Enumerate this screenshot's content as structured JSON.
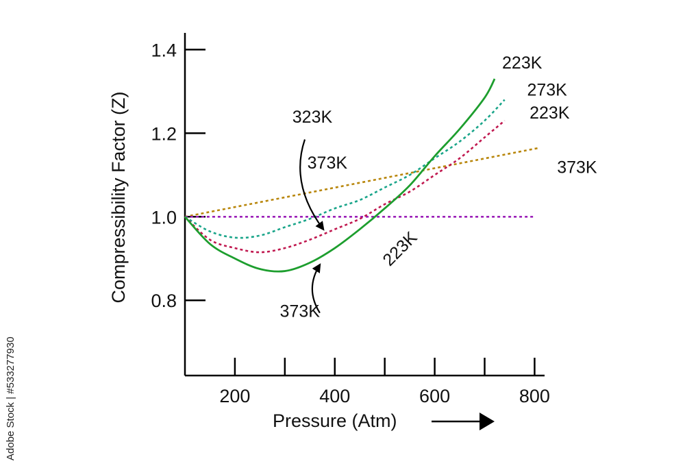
{
  "watermark": "Adobe Stock | #533277930",
  "chart_data": {
    "type": "line",
    "xlabel": "Pressure (Atm)",
    "ylabel": "Compressibility Factor (Z)",
    "xlim": [
      100,
      820
    ],
    "ylim": [
      0.62,
      1.44
    ],
    "xticks": [
      200,
      400,
      600,
      800
    ],
    "xticks_minor": [
      200,
      300,
      400,
      500,
      600,
      700,
      800
    ],
    "yticks": [
      0.8,
      1.0,
      1.2,
      1.4
    ],
    "x_arrow": true,
    "grid": false,
    "legend": "none",
    "series": [
      {
        "color": "#b8860b",
        "dash": true,
        "points": [
          [
            100,
            1.0
          ],
          [
            810,
            1.165
          ]
        ]
      },
      {
        "color": "#9b1fb8",
        "dash": true,
        "points": [
          [
            100,
            1.0
          ],
          [
            800,
            1.0
          ]
        ]
      },
      {
        "color": "#1aa58a",
        "dash": true,
        "points": [
          [
            100,
            1.0
          ],
          [
            150,
            0.965
          ],
          [
            200,
            0.95
          ],
          [
            250,
            0.955
          ],
          [
            300,
            0.975
          ],
          [
            350,
            0.995
          ],
          [
            400,
            1.02
          ],
          [
            450,
            1.04
          ],
          [
            500,
            1.07
          ],
          [
            550,
            1.1
          ],
          [
            600,
            1.14
          ],
          [
            650,
            1.18
          ],
          [
            700,
            1.23
          ],
          [
            740,
            1.28
          ]
        ]
      },
      {
        "color": "#c0184f",
        "dash": true,
        "points": [
          [
            100,
            1.0
          ],
          [
            150,
            0.945
          ],
          [
            200,
            0.925
          ],
          [
            250,
            0.915
          ],
          [
            300,
            0.925
          ],
          [
            350,
            0.945
          ],
          [
            400,
            0.97
          ],
          [
            450,
            0.995
          ],
          [
            500,
            1.03
          ],
          [
            550,
            1.06
          ],
          [
            600,
            1.1
          ],
          [
            650,
            1.14
          ],
          [
            700,
            1.19
          ],
          [
            740,
            1.23
          ]
        ]
      },
      {
        "color": "#1d9e2e",
        "dash": false,
        "points": [
          [
            100,
            1.0
          ],
          [
            150,
            0.935
          ],
          [
            200,
            0.9
          ],
          [
            250,
            0.875
          ],
          [
            300,
            0.87
          ],
          [
            350,
            0.89
          ],
          [
            400,
            0.925
          ],
          [
            450,
            0.97
          ],
          [
            500,
            1.02
          ],
          [
            550,
            1.075
          ],
          [
            600,
            1.145
          ],
          [
            650,
            1.21
          ],
          [
            700,
            1.285
          ],
          [
            720,
            1.33
          ]
        ]
      }
    ],
    "labels": [
      {
        "text": "223K",
        "x": 735,
        "y": 1.355
      },
      {
        "text": "273K",
        "x": 785,
        "y": 1.29
      },
      {
        "text": "223K",
        "x": 790,
        "y": 1.235
      },
      {
        "text": "373K",
        "x": 845,
        "y": 1.105
      },
      {
        "text": "323K",
        "x": 315,
        "y": 1.225
      },
      {
        "text": "373K",
        "x": 345,
        "y": 1.115
      },
      {
        "text": "223K",
        "x": 510,
        "y": 0.88,
        "rotate": -45
      },
      {
        "text": "373K",
        "x": 290,
        "y": 0.76
      }
    ],
    "arrows": [
      {
        "from": [
          340,
          1.185
        ],
        "to": [
          377,
          0.97
        ]
      },
      {
        "from": [
          370,
          0.77
        ],
        "to": [
          370,
          0.885
        ]
      }
    ]
  }
}
